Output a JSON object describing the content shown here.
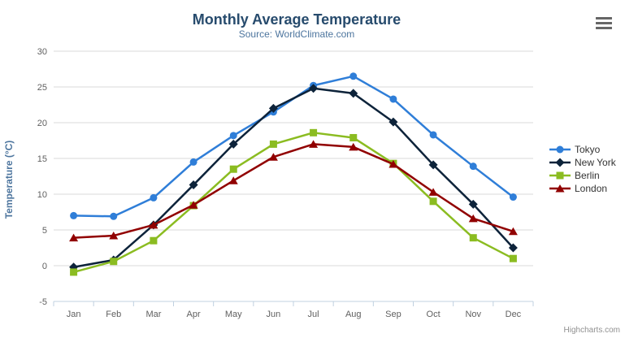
{
  "credit": "Highcharts.com",
  "export_menu": {
    "icon": "hamburger-menu-icon"
  },
  "theme": {
    "background": "#ffffff",
    "title_color": "#274b6d",
    "subtitle_color": "#4d759e",
    "axis_title_color": "#4d759e",
    "tick_label_color": "#606060",
    "legend_text_color": "#333333",
    "grid_color": "#d8d8d8",
    "axis_line_color": "#c0d0e0",
    "credit_color": "#909090",
    "menu_icon_color": "#666666"
  },
  "chart_data": {
    "type": "line",
    "title": "Monthly Average Temperature",
    "subtitle": "Source: WorldClimate.com",
    "xlabel": "",
    "ylabel": "Temperature (°C)",
    "ylim": [
      -5,
      30
    ],
    "ytick_step": 5,
    "grid": true,
    "legend_position": "right",
    "categories": [
      "Jan",
      "Feb",
      "Mar",
      "Apr",
      "May",
      "Jun",
      "Jul",
      "Aug",
      "Sep",
      "Oct",
      "Nov",
      "Dec"
    ],
    "series": [
      {
        "name": "Tokyo",
        "color": "#2f7ed8",
        "marker": "circle",
        "values": [
          7.0,
          6.9,
          9.5,
          14.5,
          18.2,
          21.5,
          25.2,
          26.5,
          23.3,
          18.3,
          13.9,
          9.6
        ]
      },
      {
        "name": "New York",
        "color": "#0d233a",
        "marker": "diamond",
        "values": [
          -0.2,
          0.8,
          5.7,
          11.3,
          17.0,
          22.0,
          24.8,
          24.1,
          20.1,
          14.1,
          8.6,
          2.5
        ]
      },
      {
        "name": "Berlin",
        "color": "#8bbc21",
        "marker": "square",
        "values": [
          -0.9,
          0.6,
          3.5,
          8.4,
          13.5,
          17.0,
          18.6,
          17.9,
          14.3,
          9.0,
          3.9,
          1.0
        ]
      },
      {
        "name": "London",
        "color": "#910000",
        "marker": "triangle",
        "values": [
          3.9,
          4.2,
          5.7,
          8.5,
          11.9,
          15.2,
          17.0,
          16.6,
          14.2,
          10.3,
          6.6,
          4.8
        ]
      }
    ]
  }
}
